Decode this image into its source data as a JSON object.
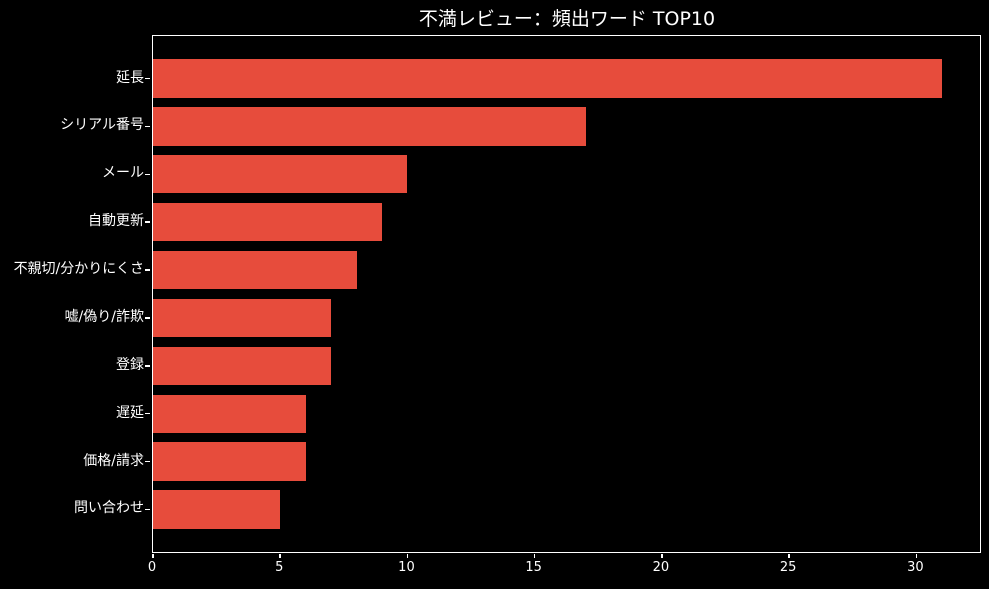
{
  "chart_data": {
    "type": "bar",
    "orientation": "horizontal",
    "title": "不満レビュー：頻出ワード TOP10",
    "categories": [
      "延長",
      "シリアル番号",
      "メール",
      "自動更新",
      "不親切/分かりにくさ",
      "嘘/偽り/詐欺",
      "登録",
      "遅延",
      "価格/請求",
      "問い合わせ"
    ],
    "values": [
      31,
      17,
      10,
      9,
      8,
      7,
      7,
      6,
      6,
      5
    ],
    "xlabel": "",
    "ylabel": "",
    "xlim": [
      0,
      32.5
    ],
    "xticks": [
      0,
      5,
      10,
      15,
      20,
      25,
      30
    ],
    "grid": false,
    "legend": "none",
    "colors": {
      "bar": "#e74c3c",
      "background": "#000000",
      "text": "#ffffff",
      "spine": "#ffffff",
      "tick": "#ffffff"
    }
  }
}
